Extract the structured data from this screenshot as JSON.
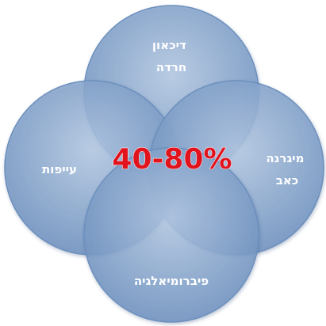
{
  "diagram": {
    "center_label": "40-80%",
    "circles": [
      {
        "id": "top",
        "lines": [
          "דיכאון",
          "חרדה"
        ]
      },
      {
        "id": "right",
        "lines": [
          "מיגרנה",
          "כאב"
        ]
      },
      {
        "id": "bottom",
        "lines": [
          "פיברומיאלגיה"
        ]
      },
      {
        "id": "left",
        "lines": [
          "עייפות"
        ]
      }
    ]
  },
  "colors": {
    "circle_fill_light": "#a9c0dc",
    "circle_fill_dark": "#5f84b4",
    "circle_stroke": "#6c8fbd",
    "label_text": "#ffffff",
    "center_text": "#e1141e"
  }
}
